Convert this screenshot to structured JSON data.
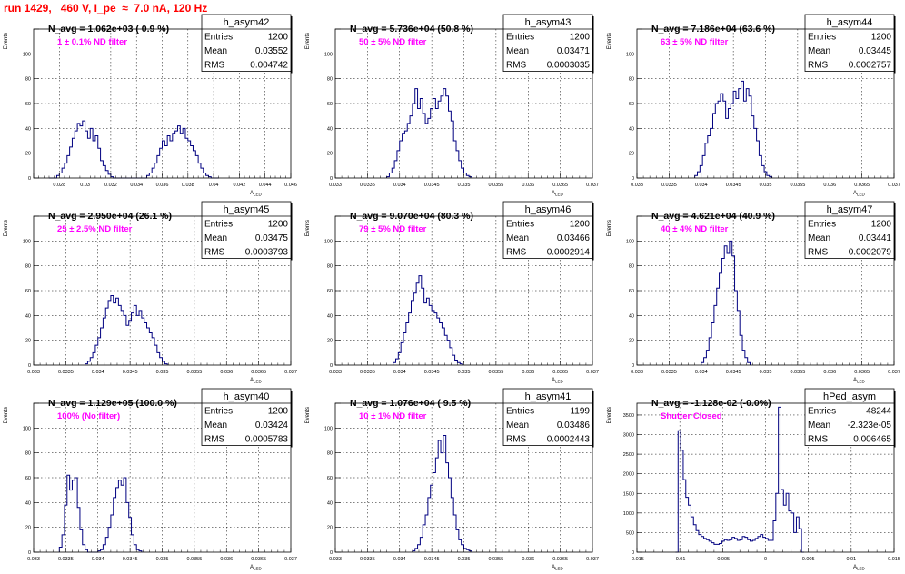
{
  "run_title": "run 1429,   460 V, I_pe  ≈  7.0 nA, 120 Hz",
  "colors": {
    "hist": "#000080",
    "title": "#ff0000",
    "subtitle": "#ff00ff",
    "grid": "#000000"
  },
  "chart_data": [
    {
      "type": "bar",
      "name": "h_asym42",
      "title": "N_avg = 1.062e+03 ( 0.9 %)",
      "subtitle": "1 ± 0.1% ND filter",
      "xlabel": "A_LED",
      "ylabel": "Events",
      "stats": [
        [
          "Entries",
          "1200"
        ],
        [
          "Mean",
          "0.03552"
        ],
        [
          "RMS",
          "0.004742"
        ]
      ],
      "xlim": [
        0.026,
        0.046
      ],
      "ylim": [
        0,
        120
      ],
      "xticks": [
        0.026,
        0.028,
        0.03,
        0.032,
        0.034,
        0.036,
        0.038,
        0.04,
        0.042,
        0.044,
        0.046
      ],
      "xtick_labels": [
        "",
        "0.028",
        "0.03",
        "0.032",
        "0.034",
        "0.036",
        "0.038",
        "0.04",
        "0.042",
        "0.044",
        "0.046"
      ],
      "yticks": [
        0,
        20,
        40,
        60,
        80,
        100,
        120
      ],
      "ytick_labels": [
        "0",
        "20",
        "40",
        "60",
        "80",
        "100",
        ""
      ],
      "bins": {
        "lo": 0.0272,
        "width": 0.0002,
        "values": [
          0,
          0,
          0,
          2,
          4,
          8,
          12,
          18,
          25,
          32,
          38,
          44,
          42,
          46,
          38,
          32,
          40,
          30,
          34,
          24,
          14,
          10,
          6,
          3,
          1,
          0,
          0,
          0,
          0,
          0,
          0,
          0,
          0,
          0,
          0,
          0,
          0,
          0,
          2,
          4,
          8,
          12,
          18,
          24,
          30,
          26,
          34,
          30,
          36,
          38,
          42,
          36,
          40,
          32,
          30,
          26,
          22,
          18,
          12,
          8,
          4,
          2,
          1,
          0,
          0,
          0
        ]
      }
    },
    {
      "type": "bar",
      "name": "h_asym43",
      "title": "N_avg = 5.736e+04 (50.8 %)",
      "subtitle": "50 ± 5% ND filter",
      "xlabel": "A_LED",
      "ylabel": "Events",
      "stats": [
        [
          "Entries",
          "1200"
        ],
        [
          "Mean",
          "0.03471"
        ],
        [
          "RMS",
          "0.0003035"
        ]
      ],
      "xlim": [
        0.033,
        0.037
      ],
      "ylim": [
        0,
        120
      ],
      "xticks": [
        0.033,
        0.0335,
        0.034,
        0.0345,
        0.035,
        0.0355,
        0.036,
        0.0365,
        0.037
      ],
      "xtick_labels": [
        "0.033",
        "0.0335",
        "0.034",
        "0.0345",
        "0.035",
        "0.0355",
        "0.036",
        "0.0365",
        "0.037"
      ],
      "yticks": [
        0,
        20,
        40,
        60,
        80,
        100,
        120
      ],
      "ytick_labels": [
        "0",
        "20",
        "40",
        "60",
        "80",
        "100",
        ""
      ],
      "bins": {
        "lo": 0.0338,
        "width": 4e-05,
        "values": [
          1,
          4,
          8,
          14,
          22,
          30,
          36,
          38,
          44,
          50,
          60,
          72,
          56,
          64,
          52,
          44,
          48,
          56,
          64,
          56,
          62,
          66,
          72,
          66,
          54,
          46,
          30,
          22,
          14,
          8,
          4,
          2,
          1
        ]
      }
    },
    {
      "type": "bar",
      "name": "h_asym44",
      "title": "N_avg = 7.186e+04 (63.6 %)",
      "subtitle": "63 ± 5% ND filter",
      "xlabel": "A_LED",
      "ylabel": "Events",
      "stats": [
        [
          "Entries",
          "1200"
        ],
        [
          "Mean",
          "0.03445"
        ],
        [
          "RMS",
          "0.0002757"
        ]
      ],
      "xlim": [
        0.033,
        0.037
      ],
      "ylim": [
        0,
        120
      ],
      "xticks": [
        0.033,
        0.0335,
        0.034,
        0.0345,
        0.035,
        0.0355,
        0.036,
        0.0365,
        0.037
      ],
      "xtick_labels": [
        "0.033",
        "0.0335",
        "0.034",
        "0.0345",
        "0.035",
        "0.0355",
        "0.036",
        "0.0365",
        "0.037"
      ],
      "yticks": [
        0,
        20,
        40,
        60,
        80,
        100,
        120
      ],
      "ytick_labels": [
        "0",
        "20",
        "40",
        "60",
        "80",
        "100",
        ""
      ],
      "bins": {
        "lo": 0.0339,
        "width": 4e-05,
        "values": [
          2,
          5,
          10,
          18,
          28,
          34,
          40,
          52,
          60,
          62,
          68,
          62,
          48,
          56,
          60,
          70,
          64,
          72,
          78,
          62,
          72,
          66,
          50,
          40,
          30,
          18,
          10,
          5,
          2,
          1
        ]
      }
    },
    {
      "type": "bar",
      "name": "h_asym45",
      "title": "N_avg = 2.950e+04 (26.1 %)",
      "subtitle": "25 ± 2.5% ND filter",
      "xlabel": "A_LED",
      "ylabel": "Events",
      "stats": [
        [
          "Entries",
          "1200"
        ],
        [
          "Mean",
          "0.03475"
        ],
        [
          "RMS",
          "0.0003793"
        ]
      ],
      "xlim": [
        0.033,
        0.037
      ],
      "ylim": [
        0,
        120
      ],
      "xticks": [
        0.033,
        0.0335,
        0.034,
        0.0345,
        0.035,
        0.0355,
        0.036,
        0.0365,
        0.037
      ],
      "xtick_labels": [
        "0.033",
        "0.0335",
        "0.034",
        "0.0345",
        "0.035",
        "0.0355",
        "0.036",
        "0.0365",
        "0.037"
      ],
      "yticks": [
        0,
        20,
        40,
        60,
        80,
        100,
        120
      ],
      "ytick_labels": [
        "0",
        "20",
        "40",
        "60",
        "80",
        "100",
        ""
      ],
      "bins": {
        "lo": 0.0338,
        "width": 4e-05,
        "values": [
          1,
          3,
          6,
          10,
          16,
          22,
          30,
          38,
          46,
          52,
          56,
          50,
          54,
          48,
          44,
          40,
          32,
          36,
          42,
          48,
          40,
          44,
          38,
          34,
          30,
          26,
          22,
          16,
          10,
          6,
          3,
          1
        ]
      }
    },
    {
      "type": "bar",
      "name": "h_asym46",
      "title": "N_avg = 9.070e+04 (80.3 %)",
      "subtitle": "79 ± 5% ND filter",
      "xlabel": "A_LED",
      "ylabel": "Events",
      "stats": [
        [
          "Entries",
          "1200"
        ],
        [
          "Mean",
          "0.03466"
        ],
        [
          "RMS",
          "0.0002914"
        ]
      ],
      "xlim": [
        0.033,
        0.037
      ],
      "ylim": [
        0,
        120
      ],
      "xticks": [
        0.033,
        0.0335,
        0.034,
        0.0345,
        0.035,
        0.0355,
        0.036,
        0.0365,
        0.037
      ],
      "xtick_labels": [
        "0.033",
        "0.0335",
        "0.034",
        "0.0345",
        "0.035",
        "0.0355",
        "0.036",
        "0.0365",
        "0.037"
      ],
      "yticks": [
        0,
        20,
        40,
        60,
        80,
        100,
        120
      ],
      "ytick_labels": [
        "0",
        "20",
        "40",
        "60",
        "80",
        "100",
        ""
      ],
      "bins": {
        "lo": 0.0339,
        "width": 4e-05,
        "values": [
          2,
          5,
          10,
          18,
          26,
          34,
          42,
          52,
          58,
          66,
          72,
          62,
          50,
          54,
          48,
          44,
          42,
          38,
          34,
          30,
          24,
          20,
          14,
          8,
          4,
          2,
          1
        ]
      }
    },
    {
      "type": "bar",
      "name": "h_asym47",
      "title": "N_avg = 4.621e+04 (40.9 %)",
      "subtitle": "40 ± 4% ND filter",
      "xlabel": "A_LED",
      "ylabel": "Events",
      "stats": [
        [
          "Entries",
          "1200"
        ],
        [
          "Mean",
          "0.03441"
        ],
        [
          "RMS",
          "0.0002079"
        ]
      ],
      "xlim": [
        0.033,
        0.037
      ],
      "ylim": [
        0,
        120
      ],
      "xticks": [
        0.033,
        0.0335,
        0.034,
        0.0345,
        0.035,
        0.0355,
        0.036,
        0.0365,
        0.037
      ],
      "xtick_labels": [
        "0.033",
        "0.0335",
        "0.034",
        "0.0345",
        "0.035",
        "0.0355",
        "0.036",
        "0.0365",
        "0.037"
      ],
      "yticks": [
        0,
        20,
        40,
        60,
        80,
        100,
        120
      ],
      "ytick_labels": [
        "0",
        "20",
        "40",
        "60",
        "80",
        "100",
        ""
      ],
      "bins": {
        "lo": 0.034,
        "width": 4e-05,
        "values": [
          2,
          6,
          12,
          22,
          34,
          48,
          62,
          74,
          86,
          96,
          90,
          100,
          88,
          60,
          44,
          24,
          12,
          6,
          2
        ]
      }
    },
    {
      "type": "bar",
      "name": "h_asym40",
      "title": "N_avg = 1.129e+05 (100.0 %)",
      "subtitle": "100% (No filter)",
      "xlabel": "A_LED",
      "ylabel": "Events",
      "stats": [
        [
          "Entries",
          "1200"
        ],
        [
          "Mean",
          "0.03424"
        ],
        [
          "RMS",
          "0.0005783"
        ]
      ],
      "xlim": [
        0.033,
        0.037
      ],
      "ylim": [
        0,
        120
      ],
      "xticks": [
        0.033,
        0.0335,
        0.034,
        0.0345,
        0.035,
        0.0355,
        0.036,
        0.0365,
        0.037
      ],
      "xtick_labels": [
        "0.033",
        "0.0335",
        "0.034",
        "0.0345",
        "0.035",
        "0.0355",
        "0.036",
        "0.0365",
        "0.037"
      ],
      "yticks": [
        0,
        20,
        40,
        60,
        80,
        100,
        120
      ],
      "ytick_labels": [
        "0",
        "20",
        "40",
        "60",
        "80",
        "100",
        ""
      ],
      "bins": {
        "lo": 0.0334,
        "width": 4e-05,
        "values": [
          4,
          14,
          38,
          62,
          50,
          58,
          60,
          36,
          18,
          6,
          2,
          0,
          0,
          0,
          0,
          1,
          2,
          6,
          12,
          20,
          30,
          44,
          52,
          58,
          54,
          60,
          40,
          28,
          14,
          6,
          2,
          1
        ]
      }
    },
    {
      "type": "bar",
      "name": "h_asym41",
      "title": "N_avg = 1.076e+04 ( 9.5 %)",
      "subtitle": "10 ± 1% ND filter",
      "xlabel": "A_LED",
      "ylabel": "Events",
      "stats": [
        [
          "Entries",
          "1199"
        ],
        [
          "Mean",
          "0.03486"
        ],
        [
          "RMS",
          "0.0002443"
        ]
      ],
      "xlim": [
        0.033,
        0.037
      ],
      "ylim": [
        0,
        120
      ],
      "xticks": [
        0.033,
        0.0335,
        0.034,
        0.0345,
        0.035,
        0.0355,
        0.036,
        0.0365,
        0.037
      ],
      "xtick_labels": [
        "0.033",
        "0.0335",
        "0.034",
        "0.0345",
        "0.035",
        "0.0355",
        "0.036",
        "0.0365",
        "0.037"
      ],
      "yticks": [
        0,
        20,
        40,
        60,
        80,
        100,
        120
      ],
      "ytick_labels": [
        "0",
        "20",
        "40",
        "60",
        "80",
        "100",
        ""
      ],
      "bins": {
        "lo": 0.0342,
        "width": 4e-05,
        "values": [
          1,
          3,
          6,
          12,
          22,
          30,
          44,
          54,
          64,
          76,
          90,
          80,
          94,
          72,
          60,
          44,
          30,
          18,
          10,
          6,
          3,
          2,
          1
        ]
      }
    },
    {
      "type": "bar",
      "name": "hPed_asym",
      "title": "N_avg = -1.128e-02 (-0.0%)",
      "subtitle": "Shutter Closed",
      "xlabel": "A_LED",
      "ylabel": "Events",
      "stats": [
        [
          "Entries",
          "48244"
        ],
        [
          "Mean",
          "-2.323e-05"
        ],
        [
          "RMS",
          "0.006465"
        ]
      ],
      "xlim": [
        -0.015,
        0.015
      ],
      "ylim": [
        0,
        3800
      ],
      "xticks": [
        -0.015,
        -0.01,
        -0.005,
        0,
        0.005,
        0.01,
        0.015
      ],
      "xtick_labels": [
        "-0.015",
        "-0.01",
        "-0.005",
        "0",
        "0.005",
        "0.01",
        "0.015"
      ],
      "yticks": [
        0,
        500,
        1000,
        1500,
        2000,
        2500,
        3000,
        3500
      ],
      "ytick_labels": [
        "0",
        "500",
        "1000",
        "1500",
        "2000",
        "2500",
        "3000",
        "3500"
      ],
      "bins": {
        "lo": -0.0105,
        "width": 0.0003,
        "values": [
          0,
          3100,
          2600,
          1850,
          1400,
          1200,
          900,
          700,
          550,
          450,
          400,
          350,
          320,
          280,
          240,
          200,
          200,
          220,
          280,
          320,
          300,
          320,
          380,
          350,
          300,
          320,
          400,
          380,
          320,
          280,
          300,
          350,
          400,
          450,
          380,
          350,
          300,
          300,
          800,
          1500,
          3700,
          1600,
          1200,
          1500,
          1050,
          1000,
          500,
          900,
          600,
          0
        ]
      }
    }
  ]
}
